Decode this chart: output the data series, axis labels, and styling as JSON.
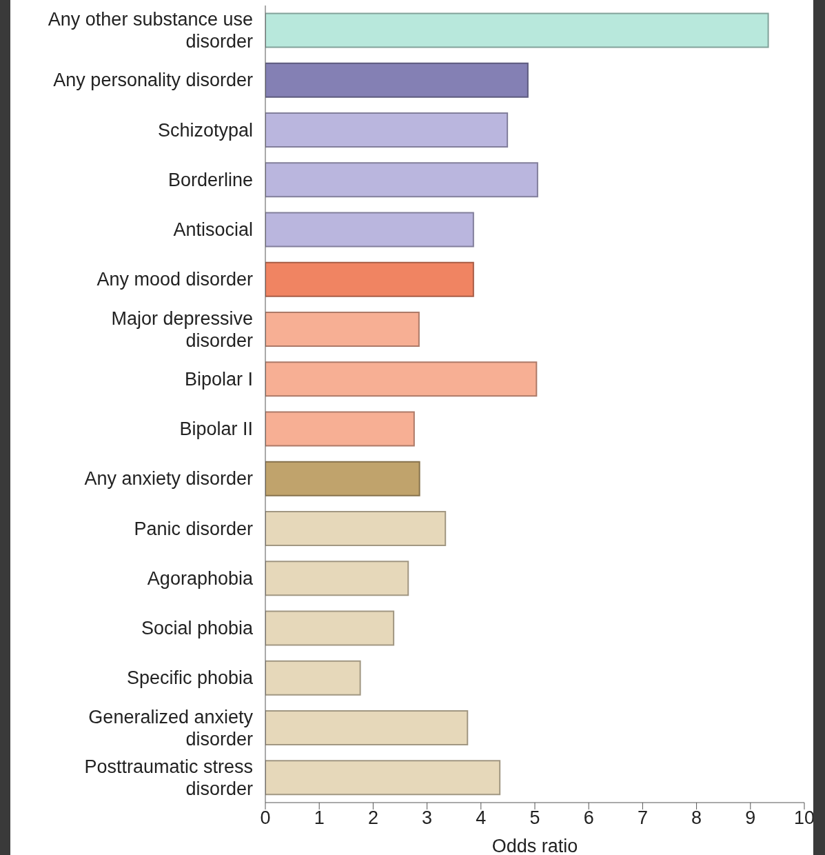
{
  "chart_data": {
    "type": "bar",
    "orientation": "horizontal",
    "xlabel": "Odds ratio",
    "categories": [
      "Any other substance use disorder",
      "Any personality disorder",
      "Schizotypal",
      "Borderline",
      "Antisocial",
      "Any mood disorder",
      "Major depressive disorder",
      "Bipolar I",
      "Bipolar II",
      "Any anxiety disorder",
      "Panic disorder",
      "Agoraphobia",
      "Social phobia",
      "Specific phobia",
      "Generalized anxiety disorder",
      "Posttraumatic stress disorder"
    ],
    "values": [
      9.33,
      4.87,
      4.49,
      5.05,
      3.86,
      3.86,
      2.85,
      5.03,
      2.76,
      2.86,
      3.34,
      2.65,
      2.38,
      1.76,
      3.75,
      4.35
    ],
    "colors": [
      "#b8e8dc",
      "#8480b4",
      "#bab6de",
      "#bab6de",
      "#bab6de",
      "#f08462",
      "#f7af94",
      "#f7af94",
      "#f7af94",
      "#c0a36c",
      "#e6d8ba",
      "#e6d8ba",
      "#e6d8ba",
      "#e6d8ba",
      "#e6d8ba",
      "#e6d8ba"
    ],
    "xlim": [
      0,
      10
    ],
    "xticks": [
      0,
      1,
      2,
      3,
      4,
      5,
      6,
      7,
      8,
      9,
      10
    ],
    "grid": false
  }
}
